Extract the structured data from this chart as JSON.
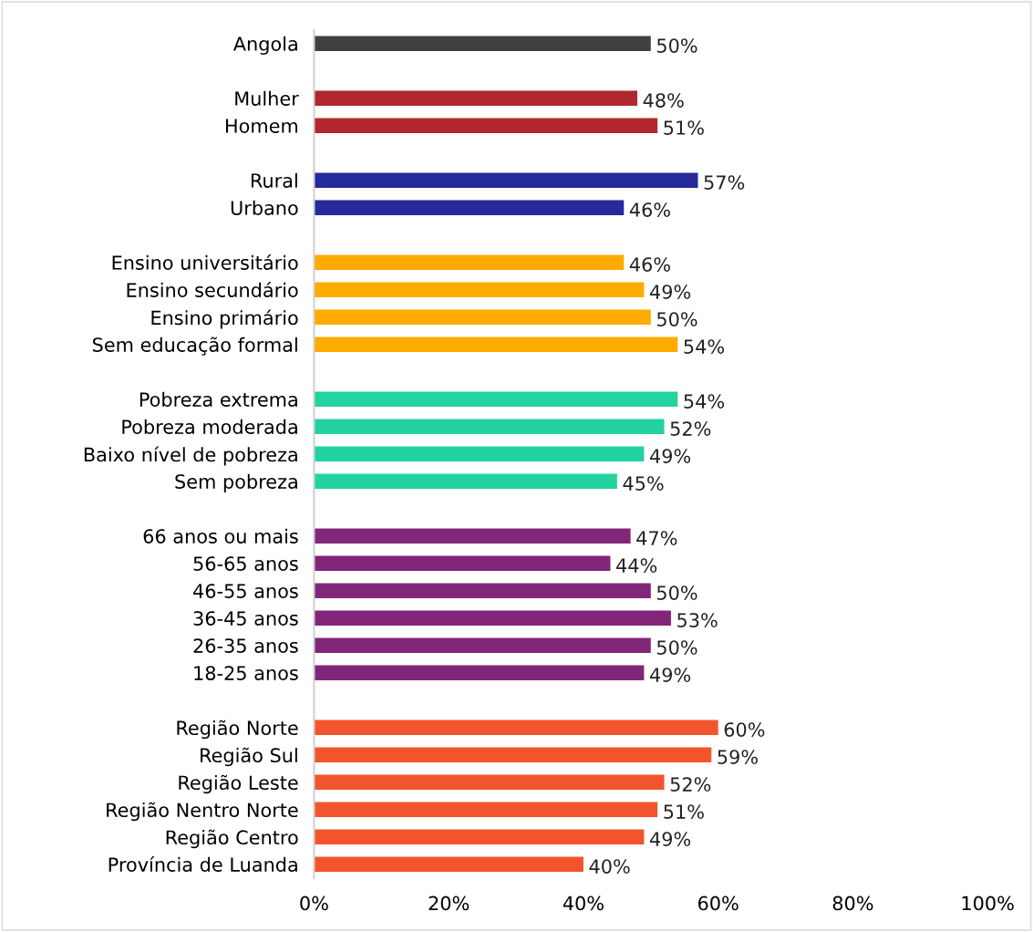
{
  "chart_data": {
    "type": "bar",
    "orientation": "horizontal",
    "categories": [
      "Angola",
      null,
      "Mulher",
      "Homem",
      null,
      "Rural",
      "Urbano",
      null,
      "Ensino universitário",
      "Ensino secundário",
      "Ensino primário",
      "Sem educação formal",
      null,
      "Pobreza extrema",
      "Pobreza moderada",
      "Baixo nível de pobreza",
      "Sem pobreza",
      null,
      "66 anos ou mais",
      "56-65 anos",
      "46-55 anos",
      "36-45 anos",
      "26-35 anos",
      "18-25 anos",
      null,
      "Região Norte",
      "Região Sul",
      "Região Leste",
      "Região Nentro Norte",
      "Região Centro",
      "Província de Luanda"
    ],
    "values": [
      50,
      null,
      48,
      51,
      null,
      57,
      46,
      null,
      46,
      49,
      50,
      54,
      null,
      54,
      52,
      49,
      45,
      null,
      47,
      44,
      50,
      53,
      50,
      49,
      null,
      60,
      59,
      52,
      51,
      49,
      40
    ],
    "value_labels": [
      "50%",
      null,
      "48%",
      "51%",
      null,
      "57%",
      "46%",
      null,
      "46%",
      "49%",
      "50%",
      "54%",
      null,
      "54%",
      "52%",
      "49%",
      "45%",
      null,
      "47%",
      "44%",
      "50%",
      "53%",
      "50%",
      "49%",
      null,
      "60%",
      "59%",
      "52%",
      "51%",
      "49%",
      "40%"
    ],
    "colors": [
      "#404040",
      null,
      "#b0272d",
      "#b0272d",
      null,
      "#262a9c",
      "#262a9c",
      null,
      "#ffab00",
      "#ffab00",
      "#ffab00",
      "#ffab00",
      null,
      "#22d3a0",
      "#22d3a0",
      "#22d3a0",
      "#22d3a0",
      null,
      "#82267a",
      "#82267a",
      "#82267a",
      "#82267a",
      "#82267a",
      "#82267a",
      null,
      "#f2552c",
      "#f2552c",
      "#f2552c",
      "#f2552c",
      "#f2552c",
      "#f2552c"
    ],
    "xlim": [
      0,
      100
    ],
    "xticks": [
      {
        "value": 0,
        "label": "0%"
      },
      {
        "value": 20,
        "label": "20%"
      },
      {
        "value": 40,
        "label": "40%"
      },
      {
        "value": 60,
        "label": "60%"
      },
      {
        "value": 80,
        "label": "80%"
      },
      {
        "value": 100,
        "label": "100%"
      }
    ],
    "grid": false,
    "legend": false
  }
}
